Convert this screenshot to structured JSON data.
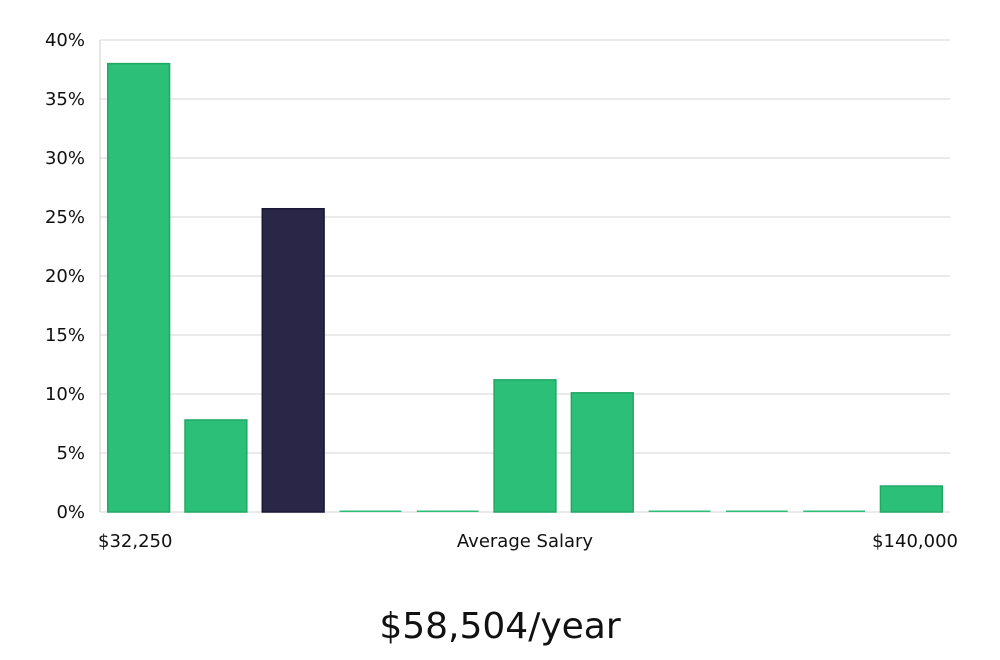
{
  "chart_data": {
    "type": "bar",
    "title": "",
    "ylim": [
      0,
      40
    ],
    "y_ticks": [
      "0%",
      "5%",
      "10%",
      "15%",
      "20%",
      "25%",
      "30%",
      "35%",
      "40%"
    ],
    "grid": true,
    "x_labels": {
      "left": "$32,250",
      "center": "Average Salary",
      "right": "$140,000"
    },
    "values": [
      38,
      7.8,
      25.7,
      0,
      0,
      11.2,
      10.1,
      0,
      0,
      0,
      2.2
    ],
    "highlight_index": 2,
    "colors": {
      "bar": "#2bbf77",
      "highlight": "#2a2647",
      "grid": "#e3e3e3",
      "axis": "#cccccc"
    }
  },
  "summary": {
    "salary": "$58,504/year"
  }
}
